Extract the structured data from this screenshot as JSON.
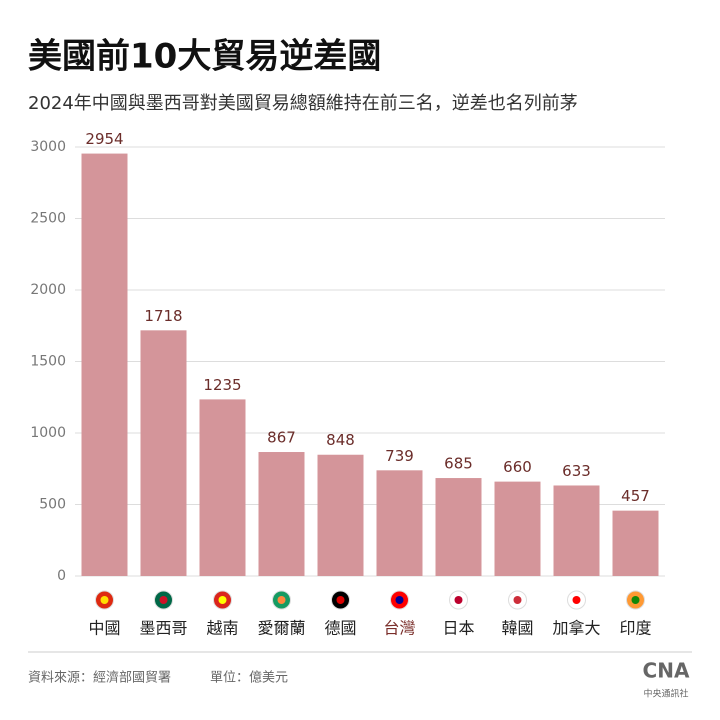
{
  "chart_data": {
    "type": "bar",
    "title": "美國前10大貿易逆差國",
    "subtitle": "2024年中國與墨西哥對美國貿易總額維持在前三名，逆差也名列前茅",
    "categories": [
      "中國",
      "墨西哥",
      "越南",
      "愛爾蘭",
      "德國",
      "台灣",
      "日本",
      "韓國",
      "加拿大",
      "印度"
    ],
    "values": [
      2954,
      1718,
      1235,
      867,
      848,
      739,
      685,
      660,
      633,
      457
    ],
    "color": "#d4959a",
    "ylim": [
      0,
      3000
    ],
    "yticks": [
      0,
      500,
      1000,
      1500,
      2000,
      2500,
      3000
    ],
    "grid": true,
    "source": "資料來源：經濟部國貿署",
    "unit": "單位：億美元",
    "logo": "CNA",
    "logo_caption": "中央通訊社"
  }
}
